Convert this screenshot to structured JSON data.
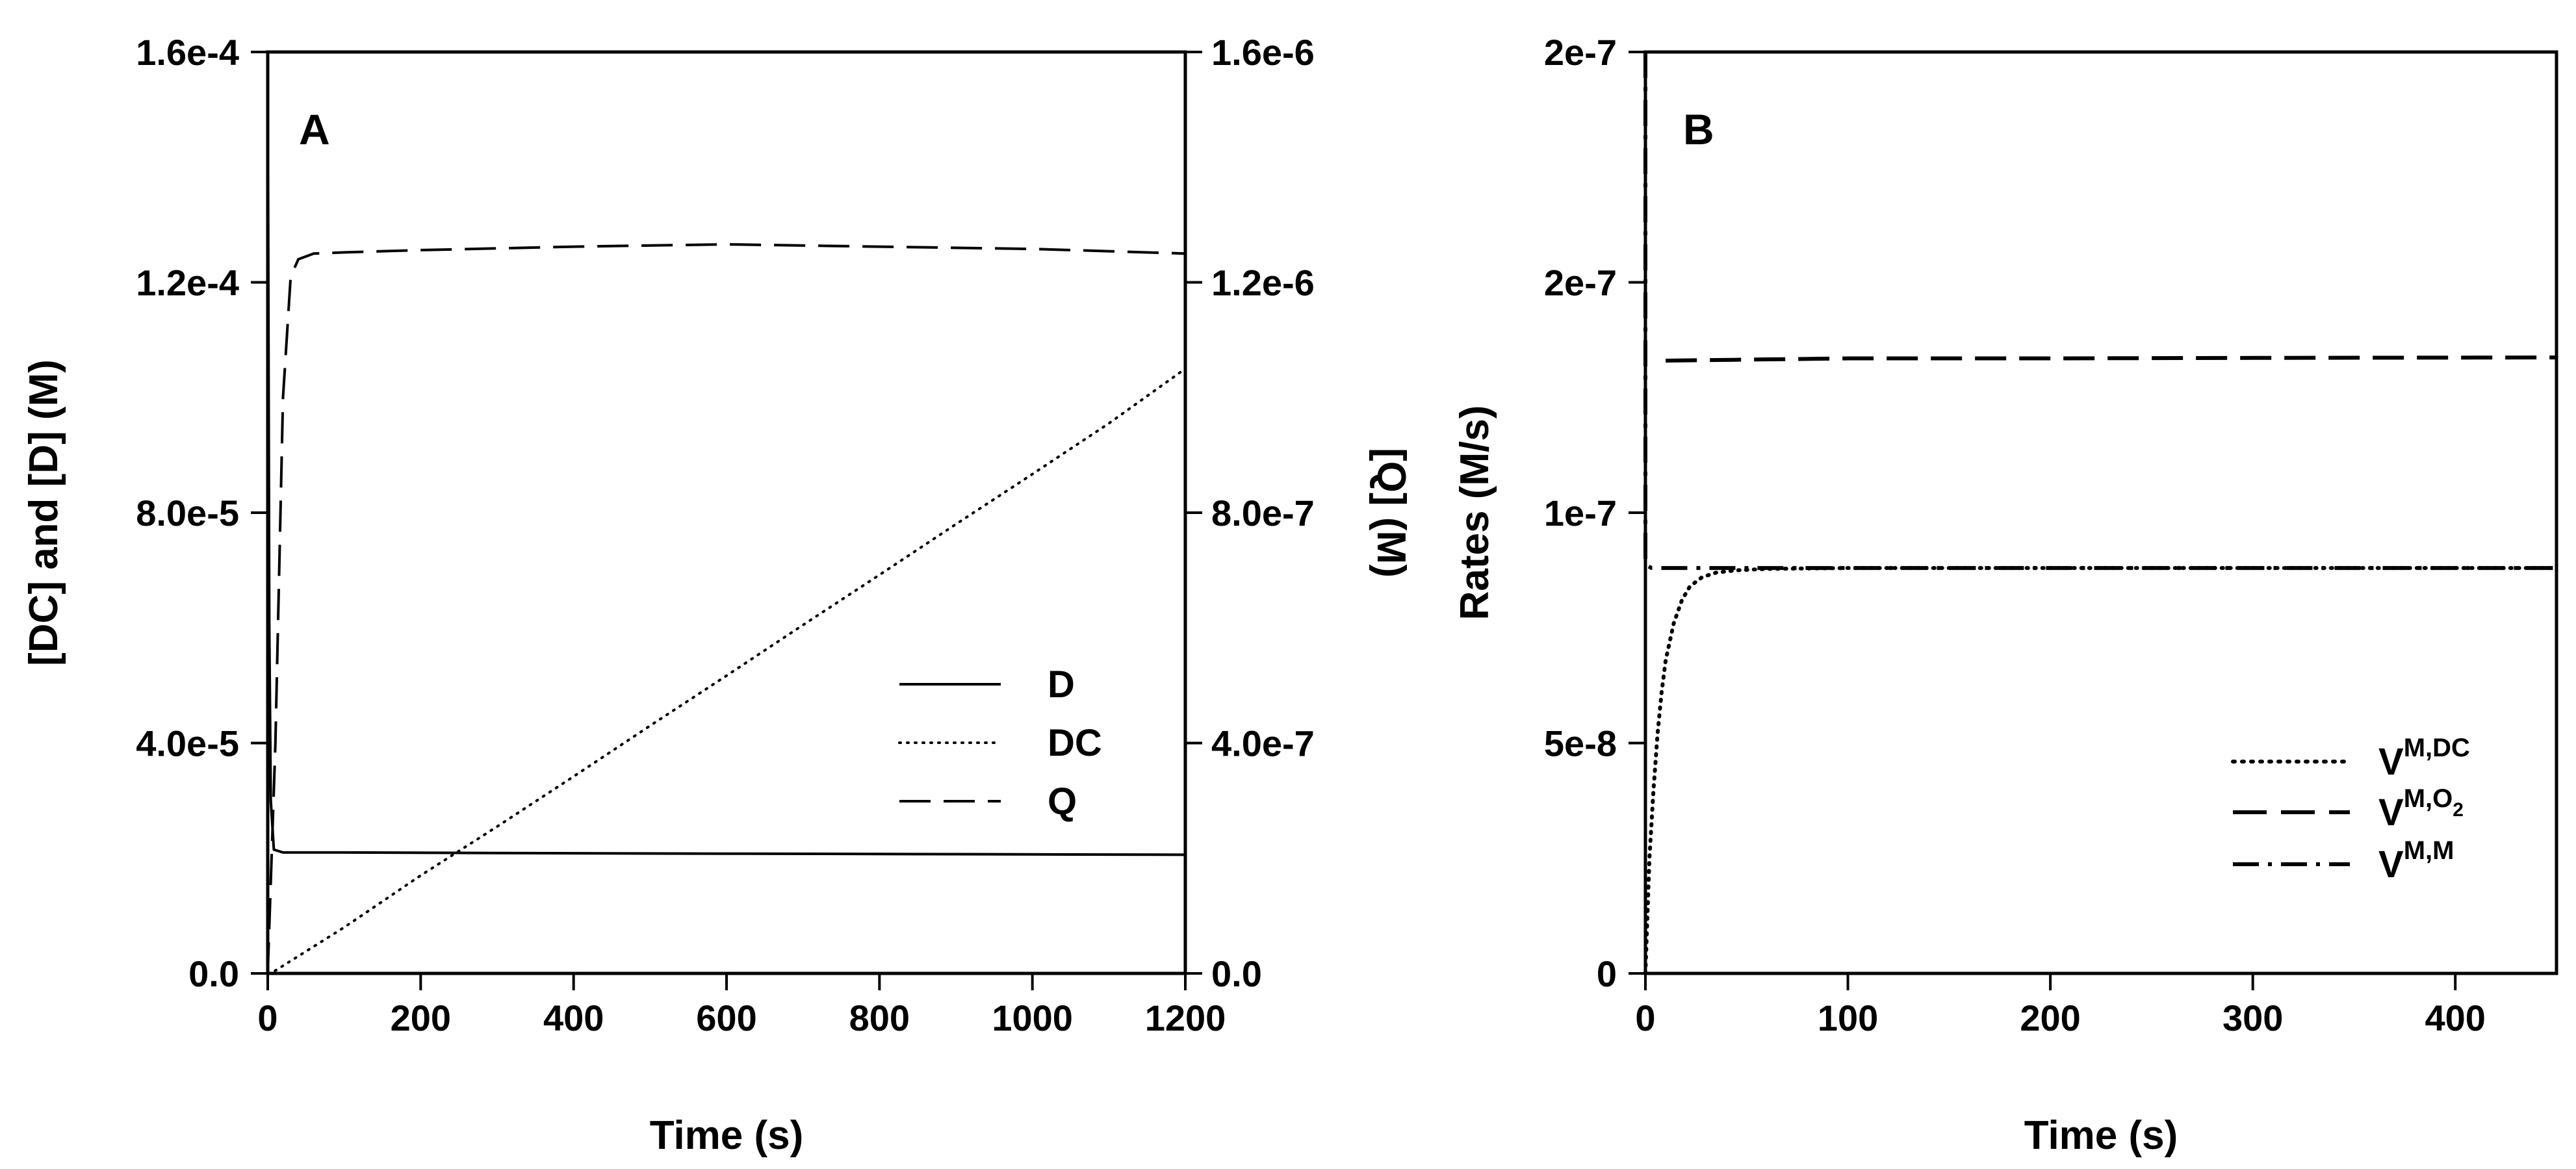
{
  "chart_data": [
    {
      "panel": "A",
      "type": "line",
      "xlabel": "Time (s)",
      "ylabel": "[DC] and [D] (M)",
      "y2label": "[Q] (M)",
      "xlim": [
        0,
        1200
      ],
      "ylim": [
        0,
        0.00016
      ],
      "y2lim": [
        0,
        1.6e-06
      ],
      "x_ticks": [
        0,
        200,
        400,
        600,
        800,
        1000,
        1200
      ],
      "x_tick_labels": [
        "0",
        "200",
        "400",
        "600",
        "800",
        "1000",
        "1200"
      ],
      "y_ticks": [
        0,
        4e-05,
        8e-05,
        0.00012,
        0.00016
      ],
      "y_tick_labels": [
        "0.0",
        "4.0e-5",
        "8.0e-5",
        "1.2e-4",
        "1.6e-4"
      ],
      "y2_ticks": [
        0,
        4e-07,
        8e-07,
        1.2e-06,
        1.6e-06
      ],
      "y2_tick_labels": [
        "0.0",
        "4.0e-7",
        "8.0e-7",
        "1.2e-6",
        "1.6e-6"
      ],
      "legend_position": "bottom-right",
      "grid": false,
      "series": [
        {
          "name": "D",
          "style": "solid",
          "axis": "left",
          "x": [
            0,
            2,
            4,
            8,
            20,
            100,
            300,
            600,
            900,
            1200
          ],
          "y": [
            0.00016,
            6e-05,
            3e-05,
            2.15e-05,
            2.1e-05,
            2.1e-05,
            2.09e-05,
            2.08e-05,
            2.07e-05,
            2.06e-05
          ]
        },
        {
          "name": "DC",
          "style": "dotted",
          "axis": "left",
          "x": [
            0,
            10,
            100,
            200,
            300,
            400,
            500,
            600,
            700,
            800,
            900,
            1000,
            1100,
            1200
          ],
          "y": [
            0,
            5e-07,
            8e-06,
            1.7e-05,
            2.55e-05,
            3.42e-05,
            4.3e-05,
            5.17e-05,
            6.05e-05,
            6.92e-05,
            7.8e-05,
            8.67e-05,
            9.55e-05,
            0.000105
          ]
        },
        {
          "name": "Q",
          "style": "dashed",
          "axis": "right",
          "x": [
            0,
            10,
            20,
            30,
            40,
            60,
            100,
            200,
            400,
            600,
            800,
            1000,
            1100,
            1200
          ],
          "y": [
            0,
            4e-07,
            1e-06,
            1.21e-06,
            1.24e-06,
            1.25e-06,
            1.252e-06,
            1.256e-06,
            1.262e-06,
            1.266e-06,
            1.262e-06,
            1.258e-06,
            1.254e-06,
            1.25e-06
          ]
        }
      ]
    },
    {
      "panel": "B",
      "type": "line",
      "xlabel": "Time (s)",
      "ylabel": "Rates (M/s)",
      "xlim": [
        0,
        450
      ],
      "ylim": [
        0,
        2e-07
      ],
      "x_ticks": [
        0,
        100,
        200,
        300,
        400
      ],
      "x_tick_labels": [
        "0",
        "100",
        "200",
        "300",
        "400"
      ],
      "y_ticks": [
        0,
        5e-08,
        1e-07,
        1.5e-07,
        2e-07
      ],
      "y_tick_labels": [
        "0",
        "5e-8",
        "1e-7",
        "2e-7",
        "2e-7"
      ],
      "legend_position": "bottom-right",
      "grid": false,
      "series": [
        {
          "label_base": "V",
          "label_sup": "M,DC",
          "label_sub": "",
          "style": "dotted",
          "x": [
            0,
            2,
            4,
            6,
            8,
            10,
            14,
            18,
            22,
            28,
            35,
            45,
            60,
            100,
            200,
            300,
            450
          ],
          "y": [
            0,
            2.5e-08,
            4e-08,
            5.2e-08,
            6.1e-08,
            6.8e-08,
            7.6e-08,
            8.1e-08,
            8.4e-08,
            8.6e-08,
            8.7e-08,
            8.75e-08,
            8.78e-08,
            8.8e-08,
            8.8e-08,
            8.8e-08,
            8.8e-08
          ]
        },
        {
          "label_base": "V",
          "label_sup": "M,O",
          "label_sub": "2",
          "style": "dashed",
          "x": [
            10,
            100,
            200,
            300,
            450
          ],
          "y": [
            1.33e-07,
            1.335e-07,
            1.335e-07,
            1.336e-07,
            1.337e-07
          ]
        },
        {
          "label_base": "V",
          "label_sup": "M,M",
          "label_sub": "",
          "style": "dashdot",
          "x": [
            0,
            0,
            1,
            3,
            100,
            200,
            300,
            450
          ],
          "y": [
            2e-07,
            8.9e-08,
            8.85e-08,
            8.8e-08,
            8.8e-08,
            8.8e-08,
            8.8e-08,
            8.8e-08
          ]
        }
      ]
    }
  ]
}
